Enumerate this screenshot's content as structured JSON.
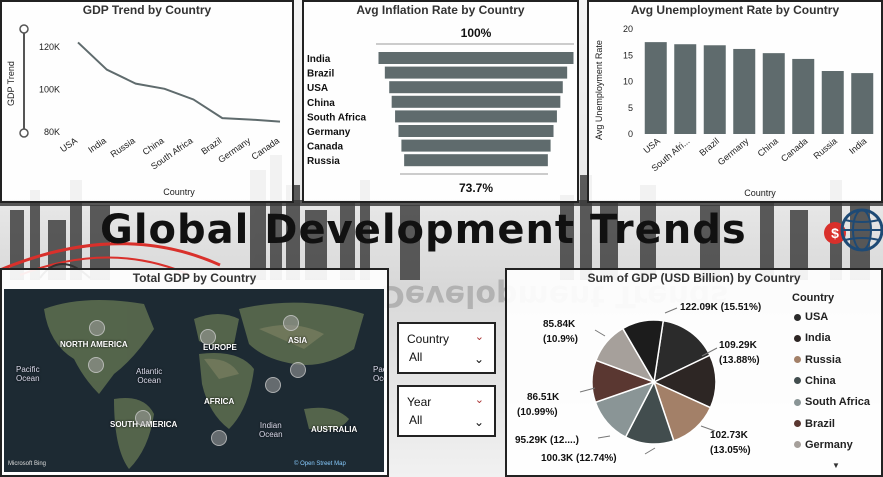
{
  "banner": {
    "title": "Global Development Trends"
  },
  "colors": {
    "slate": "#5f6b6d",
    "accent_red": "#d9302b",
    "pie": [
      "#2b2b2b",
      "#2d2624",
      "#a38068",
      "#424d4e",
      "#8a9596",
      "#5a3731",
      "#a6a09b"
    ]
  },
  "gdp_trend": {
    "title": "GDP Trend by Country",
    "chart_data": {
      "type": "line",
      "title": "GDP Trend by Country",
      "xlabel": "Country",
      "ylabel": "GDP Trend",
      "categories": [
        "USA",
        "India",
        "Russia",
        "China",
        "South Africa",
        "Brazil",
        "Germany",
        "Canada"
      ],
      "values": [
        122090,
        109290,
        102730,
        100300,
        95290,
        86510,
        85840,
        84900
      ],
      "yticks": [
        "120K",
        "100K",
        "80K"
      ],
      "ylim": [
        80000,
        127000
      ]
    }
  },
  "inflation": {
    "title": "Avg Inflation Rate by Country",
    "top_label": "100%",
    "bottom_label": "73.7%",
    "chart_data": {
      "type": "funnel",
      "title": "Avg Inflation Rate by Country",
      "categories": [
        "India",
        "Brazil",
        "USA",
        "China",
        "South Africa",
        "Germany",
        "Canada",
        "Russia"
      ],
      "values": [
        100,
        93.5,
        89,
        86.5,
        83,
        79.5,
        76.5,
        73.7
      ]
    }
  },
  "unemployment": {
    "title": "Avg Unemployment Rate by Country",
    "chart_data": {
      "type": "bar",
      "title": "Avg Unemployment Rate by Country",
      "xlabel": "Country",
      "ylabel": "Avg Unemployment Rate",
      "categories": [
        "USA",
        "South Afri...",
        "Brazil",
        "Germany",
        "China",
        "Canada",
        "Russia",
        "India"
      ],
      "values": [
        17.5,
        17.1,
        16.9,
        16.2,
        15.4,
        14.3,
        12.0,
        11.6
      ],
      "yticks": [
        "20",
        "15",
        "10",
        "5",
        "0"
      ],
      "ylim": [
        0,
        20
      ]
    }
  },
  "map": {
    "title": "Total GDP by Country",
    "continents": [
      "NORTH AMERICA",
      "EUROPE",
      "ASIA",
      "AFRICA",
      "SOUTH AMERICA",
      "AUSTRALIA"
    ],
    "oceans": [
      "Pacific\nOcean",
      "Atlantic\nOcean",
      "Indian\nOcean",
      "Pacific\nOcean"
    ],
    "attribution_logo": "Microsoft Bing",
    "attribution_link": "© Open Street Map"
  },
  "slicers": {
    "country": {
      "label": "Country",
      "value": "All"
    },
    "year": {
      "label": "Year",
      "value": "All"
    }
  },
  "gdp_pie": {
    "title": "Sum of GDP (USD Billion) by Country",
    "legend_title": "Country",
    "legend": [
      "USA",
      "India",
      "Russia",
      "China",
      "South Africa",
      "Brazil",
      "Germany"
    ],
    "chart_data": {
      "type": "pie",
      "title": "Sum of GDP (USD Billion) by Country",
      "categories": [
        "USA",
        "India",
        "Russia",
        "China",
        "South Africa",
        "Brazil",
        "Germany",
        "Canada"
      ],
      "values": [
        122.09,
        109.29,
        102.73,
        100.3,
        95.29,
        86.51,
        85.84,
        84.9
      ],
      "unit": "K"
    },
    "labels": {
      "usa": "122.09K (15.51%)",
      "india_1": "109.29K",
      "india_2": "(13.88%)",
      "russia_1": "102.73K",
      "russia_2": "(13.05%)",
      "china": "100.3K (12.74%)",
      "safrica": "95.29K (12....)",
      "brazil_1": "86.51K",
      "brazil_2": "(10.99%)",
      "germany_1": "85.84K",
      "germany_2": "(10.9%)"
    }
  }
}
